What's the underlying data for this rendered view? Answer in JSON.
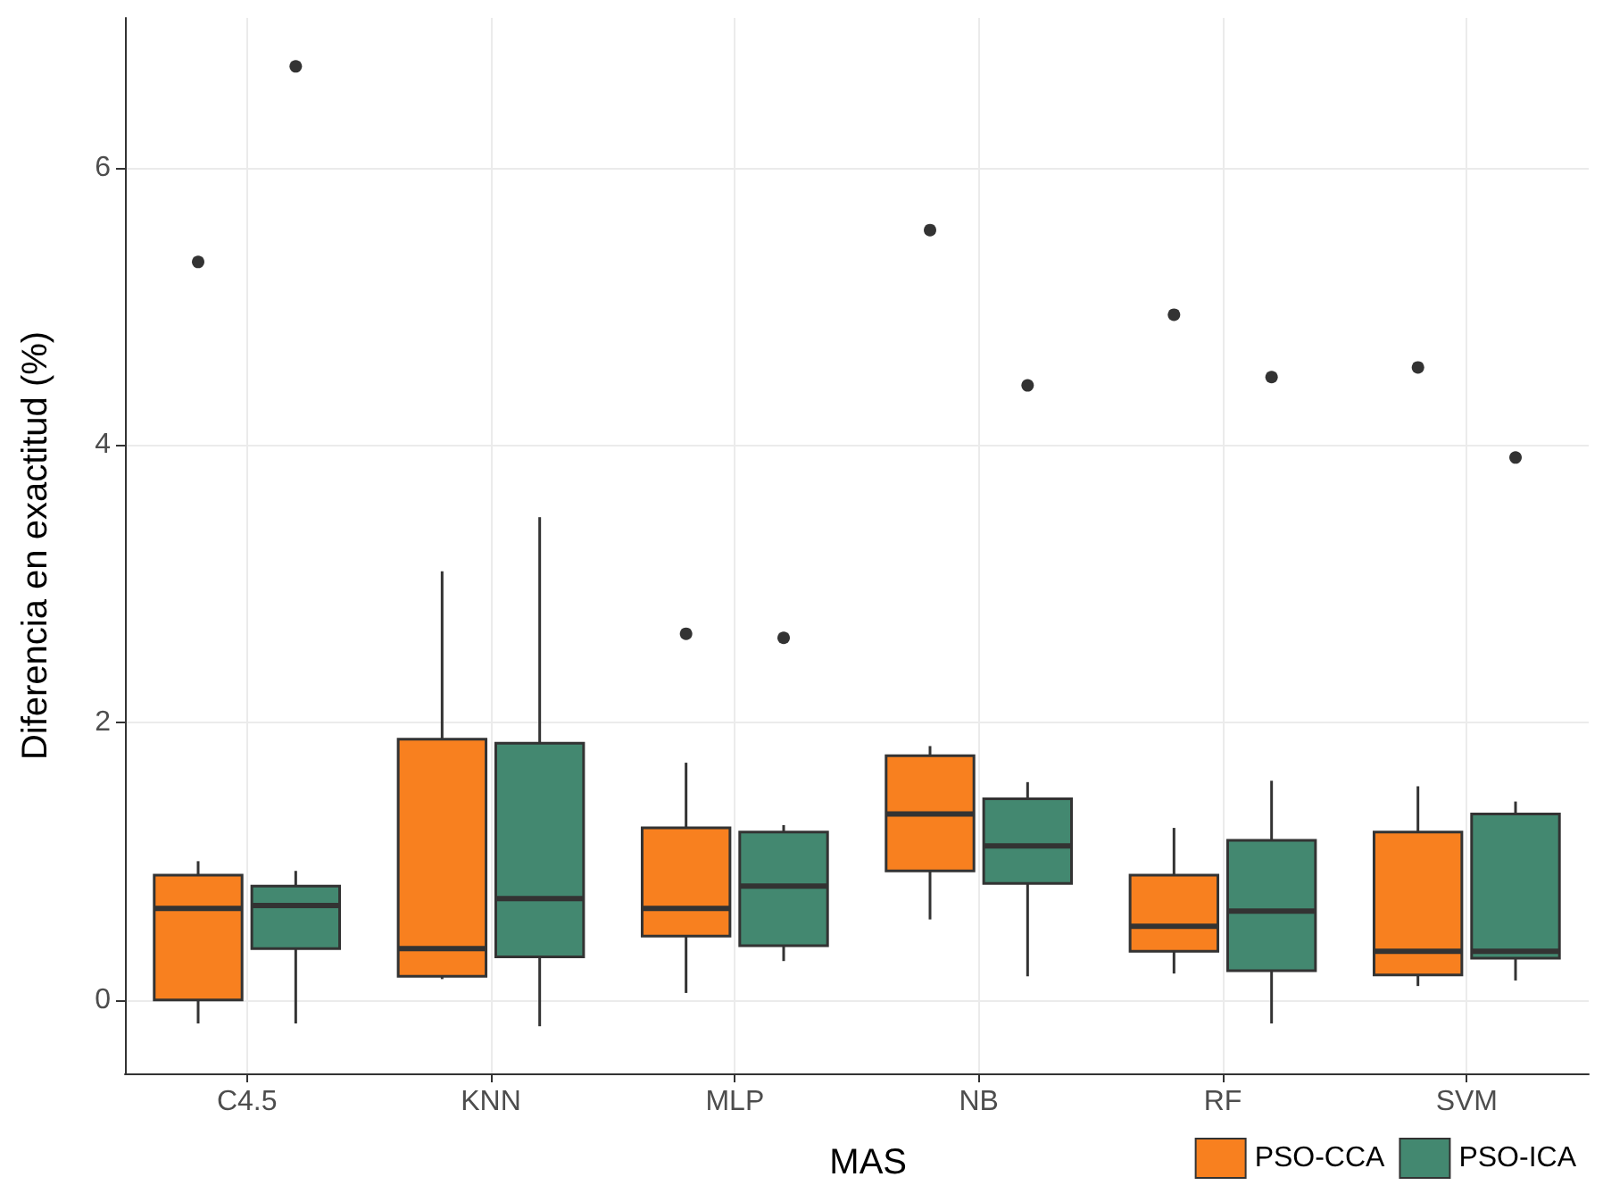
{
  "chart_data": {
    "type": "box",
    "ylabel": "Diferencia en exactitud (%)",
    "legend_title": "MAS",
    "legend": "bottom right",
    "grid": true,
    "categories": [
      "C4.5",
      "KNN",
      "MLP",
      "NB",
      "RF",
      "SVM"
    ],
    "ylim": [
      -0.53,
      7.08
    ],
    "yticks": [
      0,
      2,
      4,
      6
    ],
    "series": [
      {
        "name": "PSO-CCA",
        "color": "#f8801f",
        "boxes": [
          {
            "low": -0.17,
            "q1": 0.0,
            "median": 0.66,
            "q3": 0.9,
            "high": 1.0,
            "outliers": [
              5.32
            ]
          },
          {
            "low": 0.15,
            "q1": 0.17,
            "median": 0.37,
            "q3": 1.88,
            "high": 3.09
          },
          {
            "low": 0.05,
            "q1": 0.46,
            "median": 0.66,
            "q3": 1.24,
            "high": 1.71,
            "outliers": [
              2.64
            ]
          },
          {
            "low": 0.58,
            "q1": 0.93,
            "median": 1.34,
            "q3": 1.76,
            "high": 1.83,
            "outliers": [
              5.55
            ]
          },
          {
            "low": 0.19,
            "q1": 0.35,
            "median": 0.53,
            "q3": 0.9,
            "high": 1.24,
            "outliers": [
              4.94
            ]
          },
          {
            "low": 0.1,
            "q1": 0.18,
            "median": 0.35,
            "q3": 1.21,
            "high": 1.54,
            "outliers": [
              4.56
            ]
          }
        ]
      },
      {
        "name": "PSO-ICA",
        "color": "#438870",
        "boxes": [
          {
            "low": -0.17,
            "q1": 0.37,
            "median": 0.68,
            "q3": 0.82,
            "high": 0.93,
            "outliers": [
              6.73
            ]
          },
          {
            "low": -0.19,
            "q1": 0.31,
            "median": 0.73,
            "q3": 1.85,
            "high": 3.48
          },
          {
            "low": 0.28,
            "q1": 0.39,
            "median": 0.82,
            "q3": 1.21,
            "high": 1.26,
            "outliers": [
              2.61
            ]
          },
          {
            "low": 0.17,
            "q1": 0.84,
            "median": 1.11,
            "q3": 1.45,
            "high": 1.57,
            "outliers": [
              4.43
            ]
          },
          {
            "low": -0.17,
            "q1": 0.21,
            "median": 0.64,
            "q3": 1.15,
            "high": 1.58,
            "outliers": [
              4.49
            ]
          },
          {
            "low": 0.14,
            "q1": 0.3,
            "median": 0.35,
            "q3": 1.34,
            "high": 1.43,
            "outliers": [
              3.91
            ]
          }
        ]
      }
    ]
  }
}
